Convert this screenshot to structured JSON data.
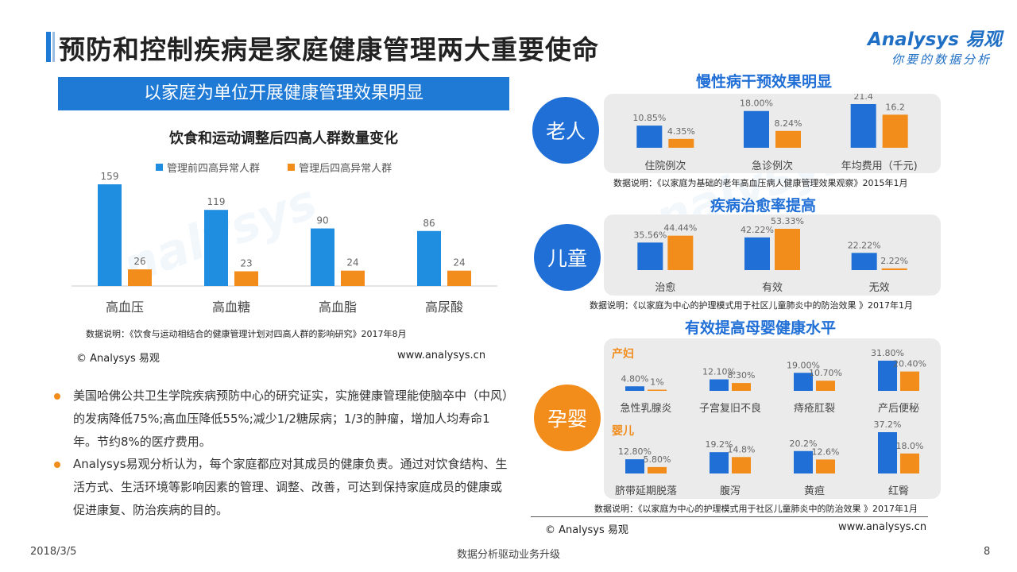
{
  "page_title": "预防和控制疾病是家庭健康管理两大重要使命",
  "logo": {
    "brand": "Analysys 易观",
    "tagline": "你要的数据分析"
  },
  "left": {
    "banner": "以家庭为单位开展健康管理效果明显",
    "note": "数据说明：《饮食与运动相结合的健康管理计划对四高人群的影响研究》2017年8月",
    "copyright": "© Analysys 易观",
    "url": "www.analysys.cn",
    "bullets": [
      "美国哈佛公共卫生学院疾病预防中心的研究证实，实施健康管理能使脑卒中（中风）的发病降低75%;高血压降低55%;减少1/2糖尿病；1/3的肿瘤，增加人均寿命1年。节约8%的医疗费用。",
      "Analysys易观分析认为，每个家庭都应对其成员的健康负责。通过对饮食结构、生活方式、生活环境等影响因素的管理、调整、改善，可达到保持家庭成员的健康或促进康复、防治疾病的目的。"
    ]
  },
  "right": {
    "elderly": {
      "title": "慢性病干预效果明显",
      "circle": "老人",
      "note": "数据说明：《以家庭为基础的老年高血压病人健康管理效果观察》2015年1月"
    },
    "children": {
      "title": "疾病治愈率提高",
      "circle": "儿童",
      "note": "数据说明：《以家庭为中心的护理模式用于社区儿童肺炎中的防治效果 》2017年1月"
    },
    "maternal": {
      "title": "有效提高母婴健康水平",
      "circle": "孕婴",
      "label_mother": "产妇",
      "label_baby": "婴儿",
      "note": "数据说明：《以家庭为中心的护理模式用于社区儿童肺炎中的防治效果 》2017年1月"
    },
    "copyright": "© Analysys 易观",
    "url": "www.analysys.cn"
  },
  "footer": {
    "date": "2018/3/5",
    "center": "数据分析驱动业务升级",
    "page": "8"
  },
  "colors": {
    "blue": "#1f6fd6",
    "orange": "#f28c1b",
    "banner": "#1f7ad6",
    "circle": "#1f6fd6",
    "circle_alt": "#f28c1b"
  },
  "chart_data": [
    {
      "id": "four-highs",
      "type": "bar",
      "title": "饮食和运动调整后四高人群数量变化",
      "categories": [
        "高血压",
        "高血糖",
        "高血脂",
        "高尿酸"
      ],
      "series": [
        {
          "name": "管理前四高异常人群",
          "values": [
            159,
            119,
            90,
            86
          ],
          "labels": [
            "159",
            "119",
            "90",
            "86"
          ]
        },
        {
          "name": "管理后四高异常人群",
          "values": [
            26,
            23,
            24,
            24
          ],
          "labels": [
            "26",
            "23",
            "24",
            "24"
          ]
        }
      ],
      "ylim": [
        0,
        170
      ]
    },
    {
      "id": "elderly",
      "type": "bar",
      "categories": [
        "住院例次",
        "急诊例次",
        "年均费用（千元)"
      ],
      "series": [
        {
          "values": [
            10.85,
            18.0,
            21.4
          ],
          "labels": [
            "10.85%",
            "18.00%",
            "21.4"
          ]
        },
        {
          "values": [
            4.35,
            8.24,
            16.2
          ],
          "labels": [
            "4.35%",
            "8.24%",
            "16.2"
          ]
        }
      ]
    },
    {
      "id": "children",
      "type": "bar",
      "categories": [
        "治愈",
        "有效",
        "无效"
      ],
      "series": [
        {
          "values": [
            35.56,
            42.22,
            22.22
          ],
          "labels": [
            "35.56%",
            "42.22%",
            "22.22%"
          ]
        },
        {
          "values": [
            44.44,
            53.33,
            2.22
          ],
          "labels": [
            "44.44%",
            "53.33%",
            "2.22%"
          ]
        }
      ]
    },
    {
      "id": "mother",
      "type": "bar",
      "categories": [
        "急性乳腺炎",
        "子宫复旧不良",
        "痔疮肛裂",
        "产后便秘"
      ],
      "series": [
        {
          "values": [
            4.8,
            12.1,
            19.0,
            31.8
          ],
          "labels": [
            "4.80%",
            "12.10%",
            "19.00%",
            "31.80%"
          ]
        },
        {
          "values": [
            1,
            8.3,
            10.7,
            20.4
          ],
          "labels": [
            "1%",
            "8.30%",
            "10.70%",
            "20.40%"
          ]
        }
      ]
    },
    {
      "id": "baby",
      "type": "bar",
      "categories": [
        "脐带延期脱落",
        "腹泻",
        "黄疸",
        "红臀"
      ],
      "series": [
        {
          "values": [
            12.8,
            19.2,
            20.2,
            37.2
          ],
          "labels": [
            "12.80%",
            "19.2%",
            "20.2%",
            "37.2%"
          ]
        },
        {
          "values": [
            5.8,
            14.8,
            12.6,
            18.0
          ],
          "labels": [
            "5.80%",
            "14.8%",
            "12.6%",
            "18.0%"
          ]
        }
      ]
    }
  ]
}
